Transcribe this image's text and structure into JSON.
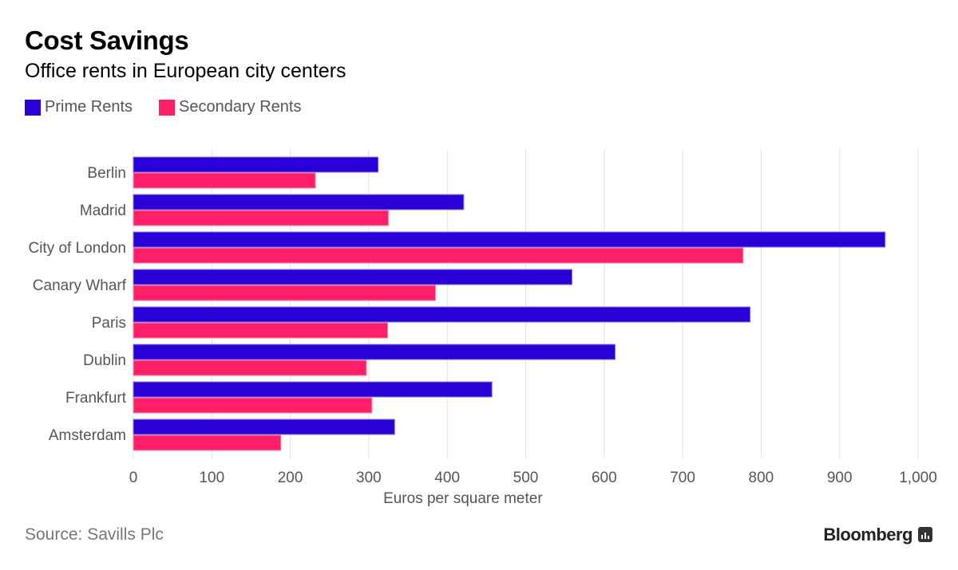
{
  "chart_data": {
    "type": "bar",
    "orientation": "horizontal",
    "title": "Cost Savings",
    "subtitle": "Office rents in European city centers",
    "xlabel": "Euros per square meter",
    "ylabel": "",
    "xlim": [
      0,
      1000
    ],
    "xticks": [
      0,
      100,
      200,
      300,
      400,
      500,
      600,
      700,
      800,
      900,
      1000
    ],
    "xtick_labels": [
      "0",
      "100",
      "200",
      "300",
      "400",
      "500",
      "600",
      "700",
      "800",
      "900",
      "1,000"
    ],
    "grid": "vertical",
    "legend_position": "top-left",
    "categories": [
      "Berlin",
      "Madrid",
      "City of London",
      "Canary Wharf",
      "Paris",
      "Dublin",
      "Frankfurt",
      "Amsterdam"
    ],
    "series": [
      {
        "name": "Prime Rents",
        "color": "#2900d6",
        "values": [
          312,
          421,
          958,
          559,
          786,
          614,
          457,
          333
        ]
      },
      {
        "name": "Secondary Rents",
        "color": "#ff1f68",
        "values": [
          232,
          325,
          777,
          385,
          324,
          297,
          304,
          188
        ]
      }
    ],
    "source": "Source: Savills Plc"
  },
  "header": {
    "title": "Cost Savings",
    "subtitle": "Office rents in European city centers"
  },
  "legend": [
    {
      "label": "Prime Rents",
      "color": "#2900d6"
    },
    {
      "label": "Secondary Rents",
      "color": "#ff1f68"
    }
  ],
  "footer": {
    "source": "Source: Savills Plc",
    "brand": "Bloomberg",
    "brand_icon": "bloomberg-chat-icon"
  }
}
